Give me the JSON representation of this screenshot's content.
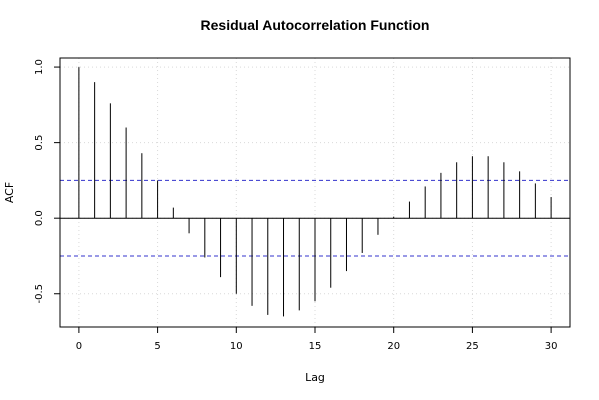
{
  "chart_data": {
    "type": "bar",
    "title": "Residual Autocorrelation Function",
    "xlabel": "Lag",
    "ylabel": "ACF",
    "xlim": [
      -1.2,
      31.2
    ],
    "ylim": [
      -0.72,
      1.06
    ],
    "x_ticks": [
      0,
      5,
      10,
      15,
      20,
      25,
      30
    ],
    "y_ticks": [
      -0.5,
      0.0,
      0.5,
      1.0
    ],
    "x_tick_labels": [
      "0",
      "5",
      "10",
      "15",
      "20",
      "25",
      "30"
    ],
    "y_tick_labels": [
      "-0.5",
      "0.0",
      "0.5",
      "1.0"
    ],
    "grid": true,
    "legend": "none",
    "confidence_band": 0.25,
    "colors": {
      "bars": "#000000",
      "band": "#3333cc",
      "grid": "#d9d9d9"
    },
    "series": [
      {
        "x": [
          0,
          1,
          2,
          3,
          4,
          5,
          6,
          7,
          8,
          9,
          10,
          11,
          12,
          13,
          14,
          15,
          16,
          17,
          18,
          19,
          20,
          21,
          22,
          23,
          24,
          25,
          26,
          27,
          28,
          29,
          30
        ],
        "values": [
          1.0,
          0.9,
          0.76,
          0.6,
          0.43,
          0.25,
          0.07,
          -0.1,
          -0.26,
          -0.39,
          -0.5,
          -0.58,
          -0.64,
          -0.65,
          -0.61,
          -0.55,
          -0.46,
          -0.35,
          -0.23,
          -0.11,
          0.01,
          0.11,
          0.21,
          0.3,
          0.37,
          0.41,
          0.41,
          0.37,
          0.31,
          0.23,
          0.14
        ]
      }
    ]
  }
}
